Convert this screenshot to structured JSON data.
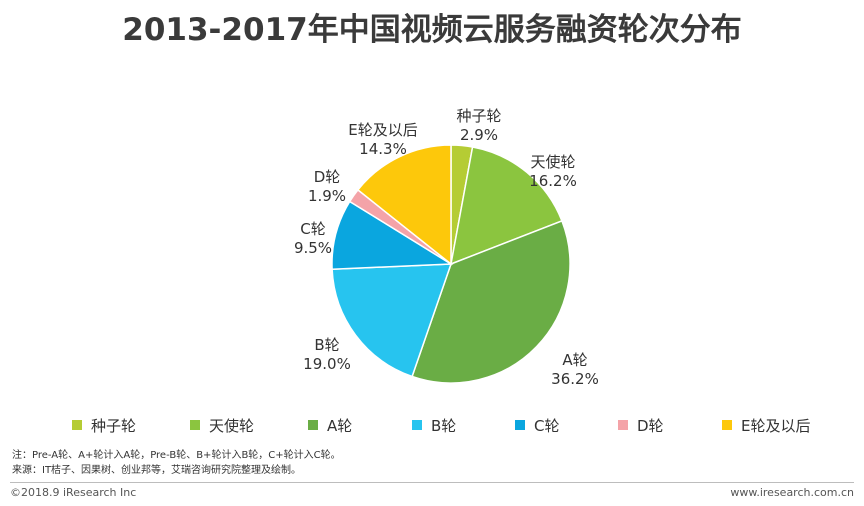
{
  "title": "2013-2017年中国视频云服务融资轮次分布",
  "chart_data": {
    "type": "pie",
    "title": "2013-2017年中国视频云服务融资轮次分布",
    "slices": [
      {
        "name": "种子轮",
        "label": "2.9%",
        "value": 2.9,
        "color": "#b5cc34"
      },
      {
        "name": "天使轮",
        "label": "16.2%",
        "value": 16.2,
        "color": "#8bc53f"
      },
      {
        "name": "A轮",
        "label": "36.2%",
        "value": 36.2,
        "color": "#6aad45"
      },
      {
        "name": "B轮",
        "label": "19.0%",
        "value": 19.0,
        "color": "#27c4ef"
      },
      {
        "name": "C轮",
        "label": "9.5%",
        "value": 9.5,
        "color": "#0aa6df"
      },
      {
        "name": "D轮",
        "label": "1.9%",
        "value": 1.9,
        "color": "#f4a3a8"
      },
      {
        "name": "E轮及以后",
        "label": "14.3%",
        "value": 14.3,
        "color": "#fdc80b"
      }
    ],
    "legend_position": "bottom"
  },
  "notes": {
    "line1": "注：Pre-A轮、A+轮计入A轮，Pre-B轮、B+轮计入B轮，C+轮计入C轮。",
    "line2": "来源：IT桔子、因果树、创业邦等，艾瑞咨询研究院整理及绘制。"
  },
  "footer": {
    "copyright": "©2018.9 iResearch Inc",
    "website": "www.iresearch.com.cn"
  }
}
